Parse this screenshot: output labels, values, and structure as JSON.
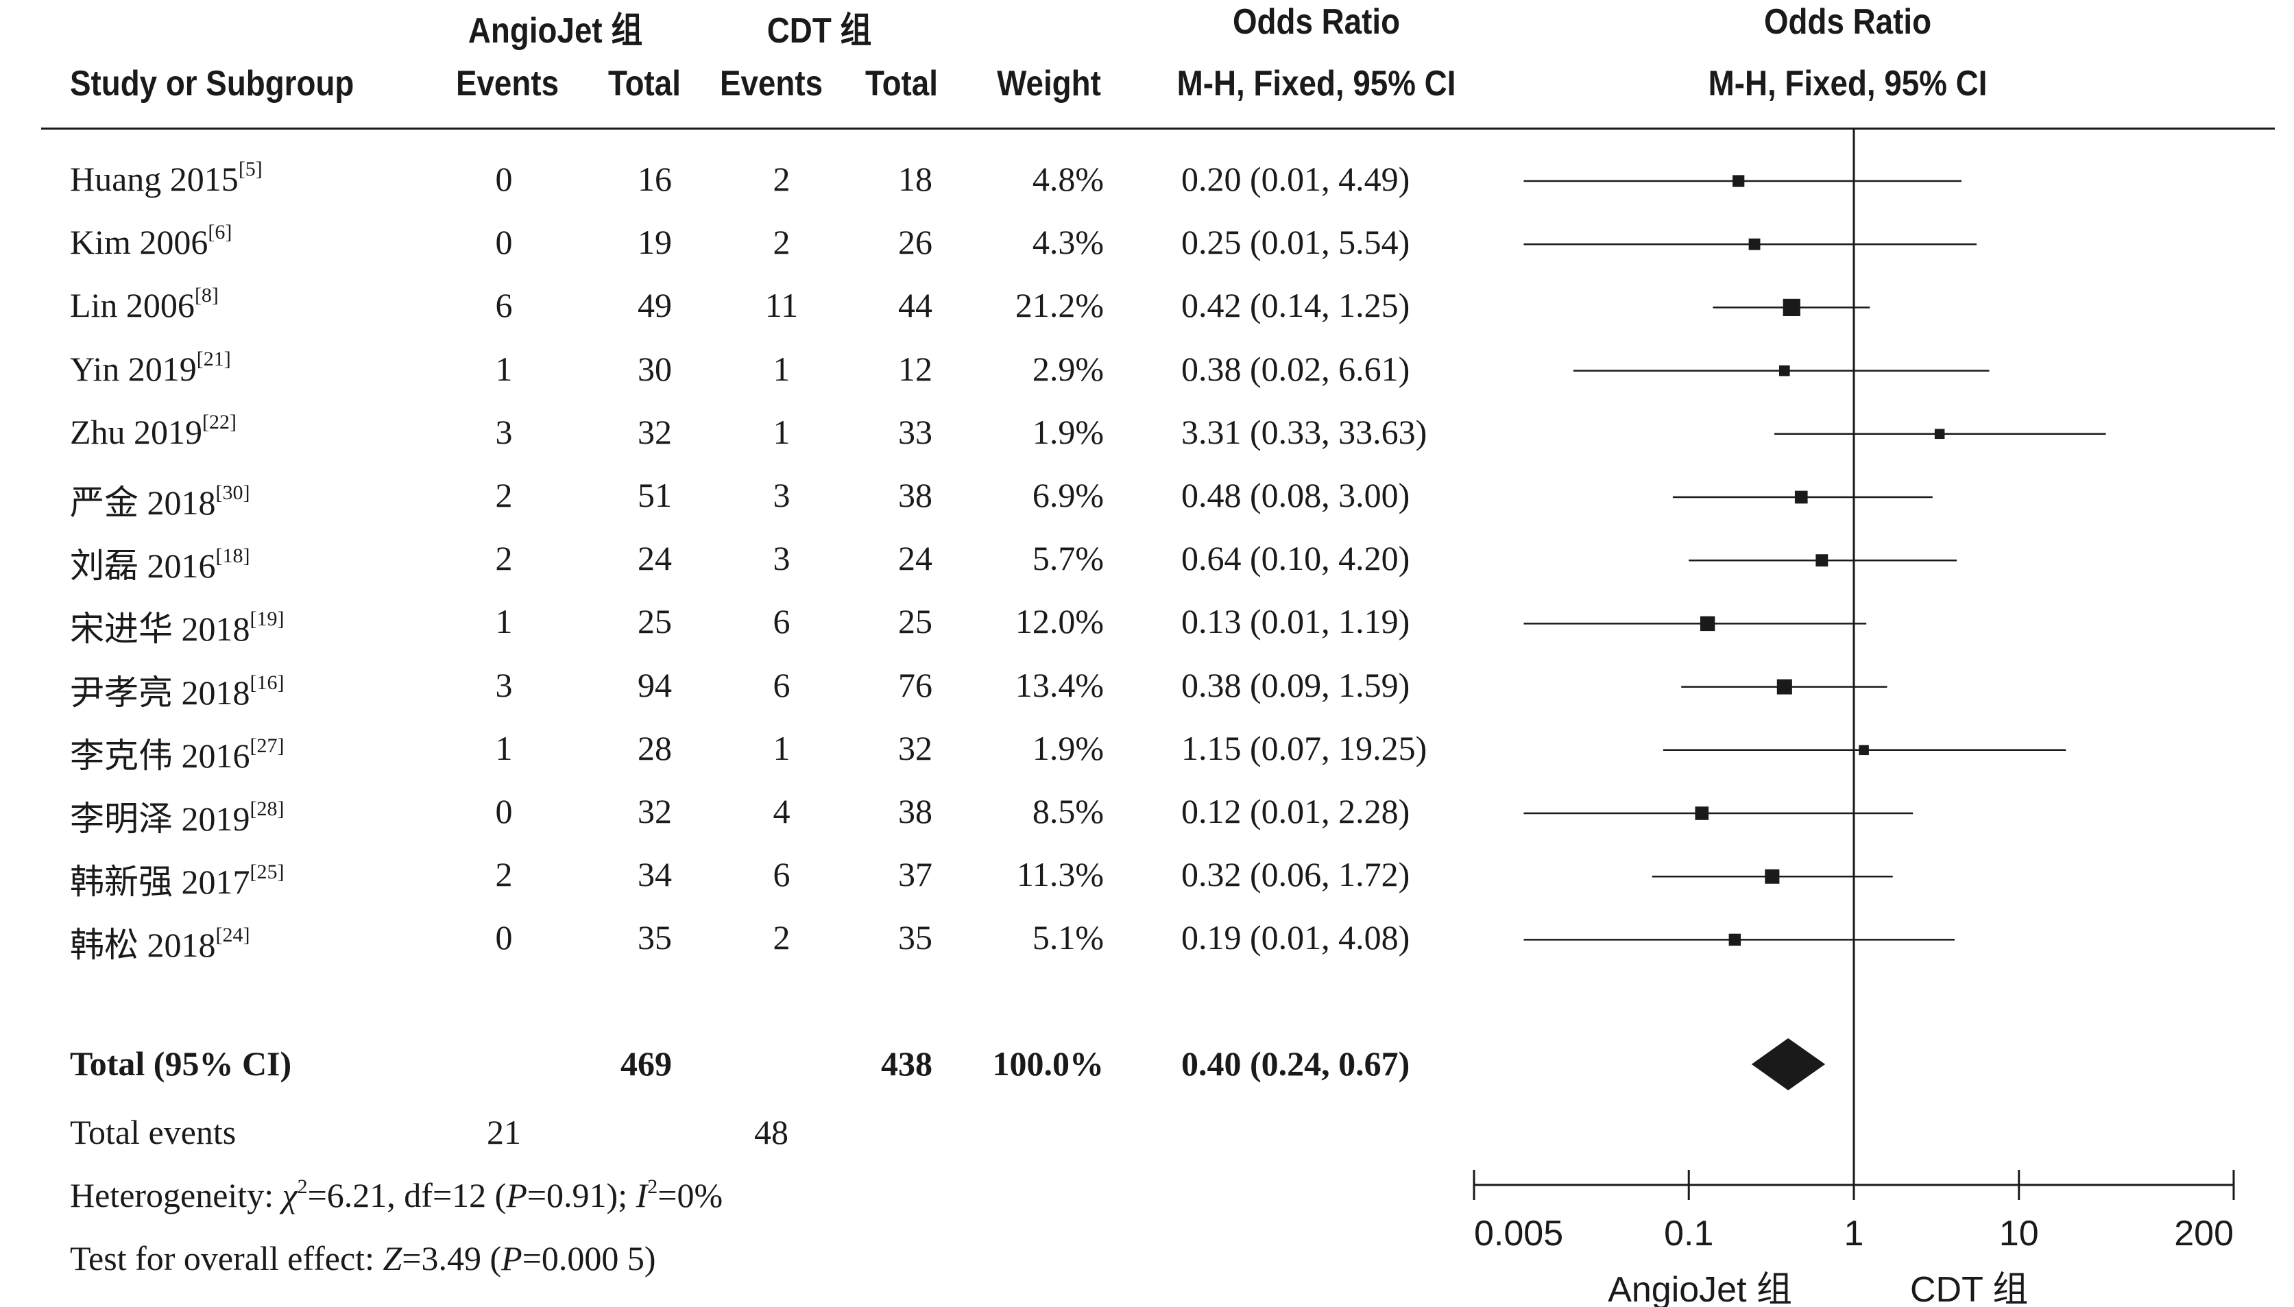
{
  "headers": {
    "group1": "AngioJet 组",
    "group2": "CDT 组",
    "or_title_left": "Odds Ratio",
    "or_title_right": "Odds Ratio",
    "study": "Study or Subgroup",
    "events1": "Events",
    "total1": "Total",
    "events2": "Events",
    "total2": "Total",
    "weight": "Weight",
    "method_left": "M-H, Fixed, 95% CI",
    "method_right": "M-H, Fixed, 95% CI"
  },
  "studies": [
    {
      "name": "Huang 2015",
      "ref": "[5]",
      "e1": "0",
      "t1": "16",
      "e2": "2",
      "t2": "18",
      "weight": "4.8%",
      "ci_text": "0.20 (0.01, 4.49)"
    },
    {
      "name": "Kim 2006",
      "ref": "[6]",
      "e1": "0",
      "t1": "19",
      "e2": "2",
      "t2": "26",
      "weight": "4.3%",
      "ci_text": "0.25 (0.01, 5.54)"
    },
    {
      "name": "Lin 2006",
      "ref": "[8]",
      "e1": "6",
      "t1": "49",
      "e2": "11",
      "t2": "44",
      "weight": "21.2%",
      "ci_text": "0.42 (0.14, 1.25)"
    },
    {
      "name": "Yin 2019",
      "ref": "[21]",
      "e1": "1",
      "t1": "30",
      "e2": "1",
      "t2": "12",
      "weight": "2.9%",
      "ci_text": "0.38 (0.02, 6.61)"
    },
    {
      "name": "Zhu 2019",
      "ref": "[22]",
      "e1": "3",
      "t1": "32",
      "e2": "1",
      "t2": "33",
      "weight": "1.9%",
      "ci_text": "3.31 (0.33, 33.63)"
    },
    {
      "name": "严金 2018",
      "ref": "[30]",
      "e1": "2",
      "t1": "51",
      "e2": "3",
      "t2": "38",
      "weight": "6.9%",
      "ci_text": "0.48 (0.08, 3.00)"
    },
    {
      "name": "刘磊 2016",
      "ref": "[18]",
      "e1": "2",
      "t1": "24",
      "e2": "3",
      "t2": "24",
      "weight": "5.7%",
      "ci_text": "0.64 (0.10, 4.20)"
    },
    {
      "name": "宋进华 2018",
      "ref": "[19]",
      "e1": "1",
      "t1": "25",
      "e2": "6",
      "t2": "25",
      "weight": "12.0%",
      "ci_text": "0.13 (0.01, 1.19)"
    },
    {
      "name": "尹孝亮 2018",
      "ref": "[16]",
      "e1": "3",
      "t1": "94",
      "e2": "6",
      "t2": "76",
      "weight": "13.4%",
      "ci_text": "0.38 (0.09, 1.59)"
    },
    {
      "name": "李克伟 2016",
      "ref": "[27]",
      "e1": "1",
      "t1": "28",
      "e2": "1",
      "t2": "32",
      "weight": "1.9%",
      "ci_text": "1.15 (0.07, 19.25)"
    },
    {
      "name": "李明泽 2019",
      "ref": "[28]",
      "e1": "0",
      "t1": "32",
      "e2": "4",
      "t2": "38",
      "weight": "8.5%",
      "ci_text": "0.12 (0.01, 2.28)"
    },
    {
      "name": "韩新强 2017",
      "ref": "[25]",
      "e1": "2",
      "t1": "34",
      "e2": "6",
      "t2": "37",
      "weight": "11.3%",
      "ci_text": "0.32 (0.06, 1.72)"
    },
    {
      "name": "韩松 2018",
      "ref": "[24]",
      "e1": "0",
      "t1": "35",
      "e2": "2",
      "t2": "35",
      "weight": "5.1%",
      "ci_text": "0.19 (0.01, 4.08)"
    }
  ],
  "total": {
    "label": "Total (95% CI)",
    "t1": "469",
    "t2": "438",
    "weight": "100.0%",
    "ci_text": "0.40 (0.24, 0.67)"
  },
  "total_events": {
    "label": "Total events",
    "e1": "21",
    "e2": "48"
  },
  "heterogeneity": {
    "prefix": "Heterogeneity: ",
    "chi": "χ",
    "chi_sup": "2",
    "chi_val": "=6.21, df=12 (",
    "p": "P",
    "p_val": "=0.91); ",
    "i": "I",
    "i_sup": "2",
    "i_val": "=0%"
  },
  "overall": {
    "prefix": "Test for overall effect: ",
    "z": "Z",
    "z_val": "=3.49 (",
    "p": "P",
    "p_val": "=0.000 5)"
  },
  "chart_data": {
    "type": "forest",
    "scale": "log",
    "xlim": [
      0.005,
      200
    ],
    "reference_line": 1,
    "ticks": [
      0.005,
      0.1,
      1,
      10,
      200
    ],
    "tick_labels": [
      "0.005",
      "0.1",
      "1",
      "10",
      "200"
    ],
    "xlabel_left": "AngioJet 组",
    "xlabel_right": "CDT 组",
    "marker_color": "#1a1a1a",
    "points": [
      {
        "study": "Huang 2015",
        "or": 0.2,
        "lo": 0.01,
        "hi": 4.49,
        "weight": 4.8
      },
      {
        "study": "Kim 2006",
        "or": 0.25,
        "lo": 0.01,
        "hi": 5.54,
        "weight": 4.3
      },
      {
        "study": "Lin 2006",
        "or": 0.42,
        "lo": 0.14,
        "hi": 1.25,
        "weight": 21.2
      },
      {
        "study": "Yin 2019",
        "or": 0.38,
        "lo": 0.02,
        "hi": 6.61,
        "weight": 2.9
      },
      {
        "study": "Zhu 2019",
        "or": 3.31,
        "lo": 0.33,
        "hi": 33.63,
        "weight": 1.9
      },
      {
        "study": "严金 2018",
        "or": 0.48,
        "lo": 0.08,
        "hi": 3.0,
        "weight": 6.9
      },
      {
        "study": "刘磊 2016",
        "or": 0.64,
        "lo": 0.1,
        "hi": 4.2,
        "weight": 5.7
      },
      {
        "study": "宋进华 2018",
        "or": 0.13,
        "lo": 0.01,
        "hi": 1.19,
        "weight": 12.0
      },
      {
        "study": "尹孝亮 2018",
        "or": 0.38,
        "lo": 0.09,
        "hi": 1.59,
        "weight": 13.4
      },
      {
        "study": "李克伟 2016",
        "or": 1.15,
        "lo": 0.07,
        "hi": 19.25,
        "weight": 1.9
      },
      {
        "study": "李明泽 2019",
        "or": 0.12,
        "lo": 0.01,
        "hi": 2.28,
        "weight": 8.5
      },
      {
        "study": "韩新强 2017",
        "or": 0.32,
        "lo": 0.06,
        "hi": 1.72,
        "weight": 11.3
      },
      {
        "study": "韩松 2018",
        "or": 0.19,
        "lo": 0.01,
        "hi": 4.08,
        "weight": 5.1
      }
    ],
    "pooled": {
      "or": 0.4,
      "lo": 0.24,
      "hi": 0.67
    }
  }
}
